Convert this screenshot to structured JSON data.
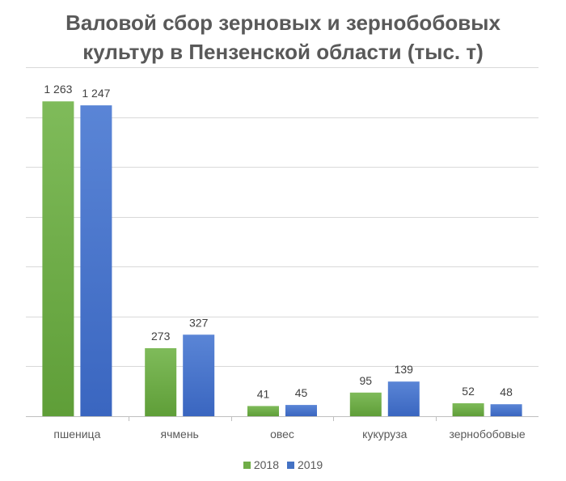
{
  "chart_data": {
    "type": "bar",
    "title_line1": "Валовой сбор зерновых и зернобобовых",
    "title_line2": "культур в Пензенской области (тыс. т)",
    "xlabel": "",
    "ylabel": "",
    "categories": [
      "пшеница",
      "ячмень",
      "овес",
      "кукуруза",
      "зернобобовые"
    ],
    "series": [
      {
        "name": "2018",
        "values": [
          1263,
          273,
          41,
          95,
          52
        ],
        "labels": [
          "1 263",
          "273",
          "41",
          "95",
          "52"
        ],
        "color": "#70ad47"
      },
      {
        "name": "2019",
        "values": [
          1247,
          327,
          45,
          139,
          48
        ],
        "labels": [
          "1 247",
          "327",
          "45",
          "139",
          "48"
        ],
        "color": "#4472c4"
      }
    ],
    "ylim": [
      0,
      1400
    ],
    "y_tick_step": 200,
    "y_axis_labels_visible": false,
    "grid": true,
    "legend_position": "bottom"
  }
}
